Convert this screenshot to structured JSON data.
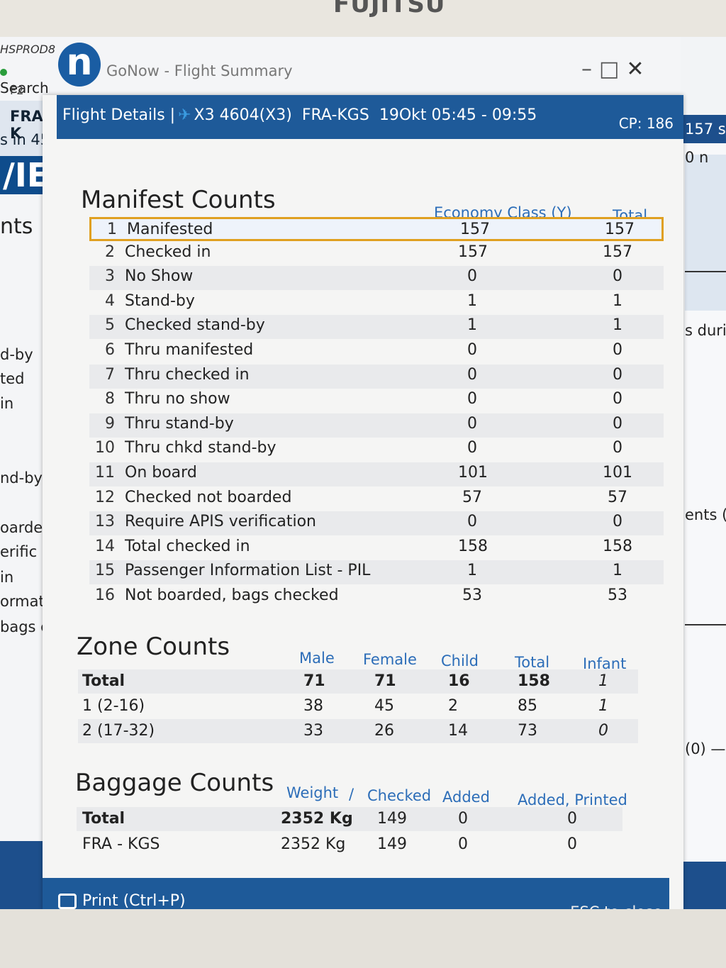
{
  "bezel": {
    "brand": "FUJITSU"
  },
  "background_app": {
    "app_name": "HSPROD8",
    "search_label": "Search",
    "search_shortcut": "F2",
    "route_fragment": "FRA-K",
    "sin_fragment": "s in 45",
    "big_fragment": "/IE",
    "nts_fragment": "nts",
    "left_words": [
      "d-by",
      "ted",
      "in",
      "nd-by",
      "oarde",
      "erific",
      "in",
      "ormat",
      "bags c"
    ],
    "right_words": {
      "header": "157 s",
      "r1": "0 n",
      "r2": "s durin",
      "r3": "ents (",
      "r4": "(0) —"
    }
  },
  "window": {
    "title": "GoNow - Flight Summary",
    "controls": {
      "minimize": "–",
      "maximize": "□",
      "close": "✕"
    }
  },
  "modal": {
    "header": {
      "label": "Flight Details |",
      "flight": "X3 4604(X3)",
      "route": "FRA-KGS",
      "date_time": "19Okt 05:45 - 09:55",
      "cp": "CP: 186"
    },
    "manifest": {
      "title": "Manifest Counts",
      "columns": [
        "Economy Class (Y)",
        "Total"
      ],
      "rows": [
        {
          "num": "1",
          "label": "Manifested",
          "economy": "157",
          "total": "157"
        },
        {
          "num": "2",
          "label": "Checked in",
          "economy": "157",
          "total": "157"
        },
        {
          "num": "3",
          "label": "No Show",
          "economy": "0",
          "total": "0"
        },
        {
          "num": "4",
          "label": "Stand-by",
          "economy": "1",
          "total": "1"
        },
        {
          "num": "5",
          "label": "Checked stand-by",
          "economy": "1",
          "total": "1"
        },
        {
          "num": "6",
          "label": "Thru manifested",
          "economy": "0",
          "total": "0"
        },
        {
          "num": "7",
          "label": "Thru checked in",
          "economy": "0",
          "total": "0"
        },
        {
          "num": "8",
          "label": "Thru no show",
          "economy": "0",
          "total": "0"
        },
        {
          "num": "9",
          "label": "Thru stand-by",
          "economy": "0",
          "total": "0"
        },
        {
          "num": "10",
          "label": "Thru chkd stand-by",
          "economy": "0",
          "total": "0"
        },
        {
          "num": "11",
          "label": "On board",
          "economy": "101",
          "total": "101"
        },
        {
          "num": "12",
          "label": "Checked not boarded",
          "economy": "57",
          "total": "57"
        },
        {
          "num": "13",
          "label": "Require APIS verification",
          "economy": "0",
          "total": "0"
        },
        {
          "num": "14",
          "label": "Total checked in",
          "economy": "158",
          "total": "158"
        },
        {
          "num": "15",
          "label": "Passenger Information List - PIL",
          "economy": "1",
          "total": "1"
        },
        {
          "num": "16",
          "label": "Not boarded, bags checked",
          "economy": "53",
          "total": "53"
        }
      ]
    },
    "zones": {
      "title": "Zone Counts",
      "columns": [
        "Male",
        "Female",
        "Child",
        "Total",
        "Infant"
      ],
      "rows": [
        {
          "label": "Total",
          "male": "71",
          "female": "71",
          "child": "16",
          "total": "158",
          "infant": "1"
        },
        {
          "label": "1 (2-16)",
          "male": "38",
          "female": "45",
          "child": "2",
          "total": "85",
          "infant": "1"
        },
        {
          "label": "2 (17-32)",
          "male": "33",
          "female": "26",
          "child": "14",
          "total": "73",
          "infant": "0"
        }
      ]
    },
    "baggage": {
      "title": "Baggage Counts",
      "columns": [
        "Weight",
        "/",
        "Checked",
        "Added",
        "Added, Printed"
      ],
      "rows": [
        {
          "label": "Total",
          "weight": "2352 Kg",
          "checked": "149",
          "added": "0",
          "added_printed": "0"
        },
        {
          "label": "FRA - KGS",
          "weight": "2352 Kg",
          "checked": "149",
          "added": "0",
          "added_printed": "0"
        }
      ]
    },
    "footer": {
      "print_label": "Print (Ctrl+P)",
      "close_hint": "ESC to close"
    }
  },
  "colors": {
    "header_blue": "#1e5a99",
    "column_heading_blue": "#2c6db8",
    "selection_outline": "#e0a020"
  }
}
